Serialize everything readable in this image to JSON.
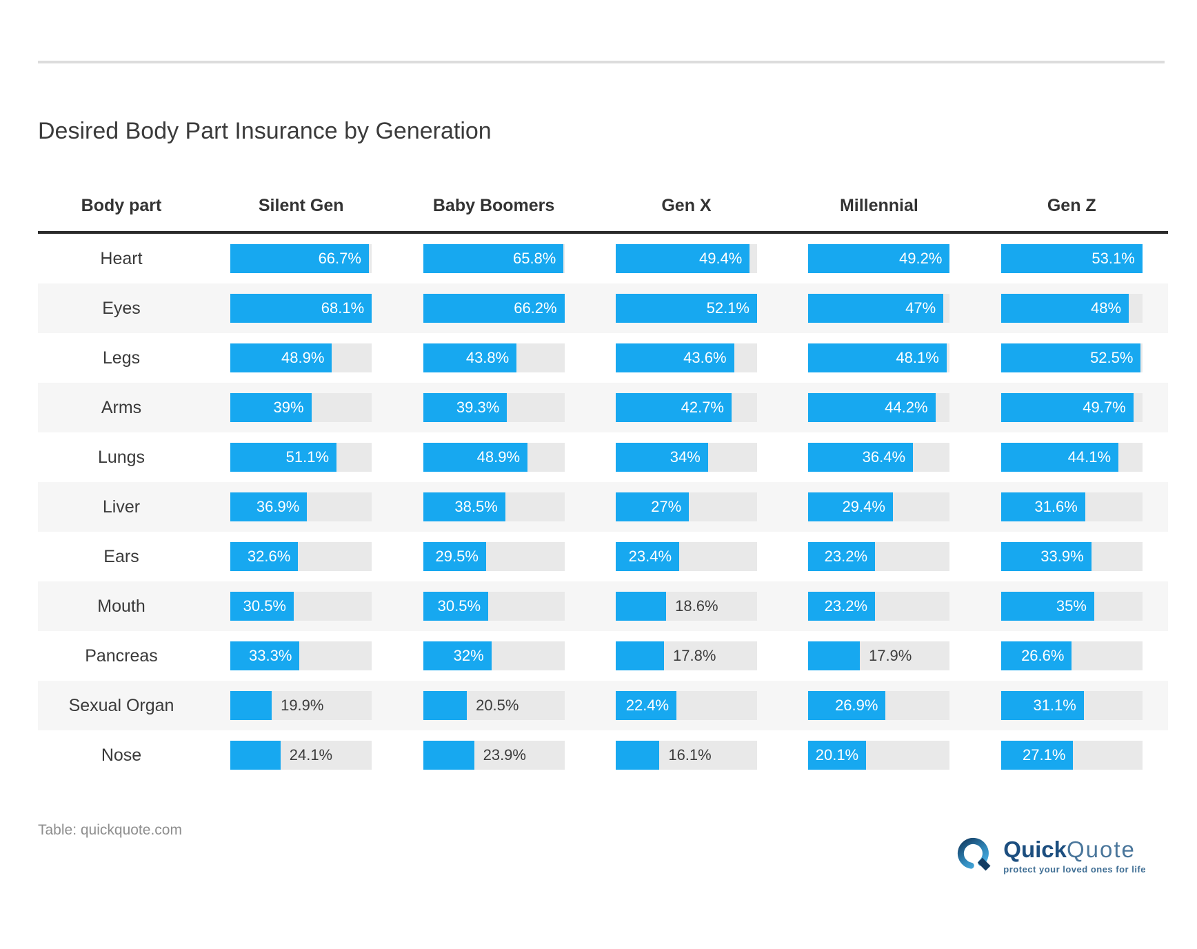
{
  "page": {
    "title": "Desired Body Part Insurance by Generation",
    "source_note": "Table: quickquote.com"
  },
  "logo": {
    "brand_part_bold": "Quick",
    "brand_part_light": "Quote",
    "tagline": "protect your loved ones for life"
  },
  "colors": {
    "bar_blue": "#17A8F0",
    "track_gray": "#E9E9E9",
    "row_stripe": "#F6F6F6",
    "header_rule": "#2B2B2B",
    "logo_navy": "#1C4E7F",
    "logo_steel": "#4A769B",
    "logo_light_blue": "#4CB6EC"
  },
  "chart_data": {
    "type": "bar",
    "orientation": "horizontal",
    "title": "Desired Body Part Insurance by Generation",
    "unit": "%",
    "columns": [
      "Body part",
      "Silent Gen",
      "Baby Boomers",
      "Gen X",
      "Millennial",
      "Gen Z"
    ],
    "categories": [
      "Heart",
      "Eyes",
      "Legs",
      "Arms",
      "Lungs",
      "Liver",
      "Ears",
      "Mouth",
      "Pancreas",
      "Sexual Organ",
      "Nose"
    ],
    "series": [
      {
        "name": "Silent Gen",
        "values": [
          66.7,
          68.1,
          48.9,
          39,
          51.1,
          36.9,
          32.6,
          30.5,
          33.3,
          19.9,
          24.1
        ]
      },
      {
        "name": "Baby Boomers",
        "values": [
          65.8,
          66.2,
          43.8,
          39.3,
          48.9,
          38.5,
          29.5,
          30.5,
          32,
          20.5,
          23.9
        ]
      },
      {
        "name": "Gen X",
        "values": [
          49.4,
          52.1,
          43.6,
          42.7,
          34,
          27,
          23.4,
          18.6,
          17.8,
          22.4,
          16.1
        ]
      },
      {
        "name": "Millennial",
        "values": [
          49.2,
          47,
          48.1,
          44.2,
          36.4,
          29.4,
          23.2,
          23.2,
          17.9,
          26.9,
          20.1
        ]
      },
      {
        "name": "Gen Z",
        "values": [
          53.1,
          48,
          52.5,
          49.7,
          44.1,
          31.6,
          33.9,
          35,
          26.6,
          31.1,
          27.1
        ]
      }
    ],
    "bar_scaling": "each bar width is scaled relative to the maximum value in its column",
    "value_label_format": "value with % suffix, one decimal shown only when fractional",
    "row_striping": "alternate rows shaded light gray starting with second row"
  }
}
